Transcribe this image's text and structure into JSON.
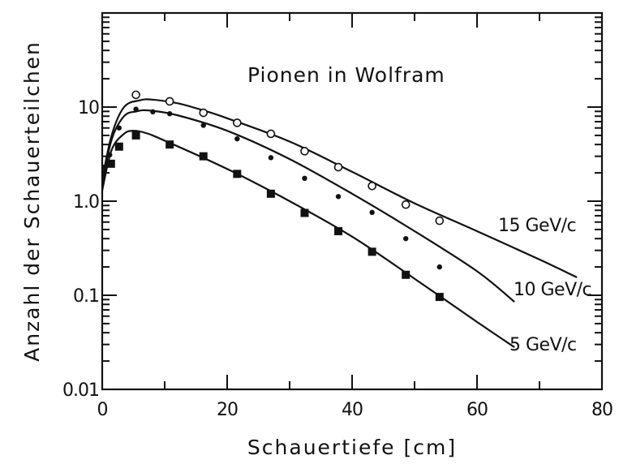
{
  "chart_data": {
    "type": "scatter",
    "title": "Pionen in Wolfram",
    "xlabel": "Schauertiefe [cm]",
    "ylabel": "Anzahl der Schauerteilchen",
    "xlim": [
      0,
      80
    ],
    "ylim": [
      0.01,
      100
    ],
    "yscale": "log",
    "x_ticks": [
      0,
      20,
      40,
      60,
      80
    ],
    "y_ticks": [
      {
        "value": 0.01,
        "label": "0.01"
      },
      {
        "value": 0.1,
        "label": "0.1"
      },
      {
        "value": 1,
        "label": "1.0"
      },
      {
        "value": 10,
        "label": "10"
      }
    ],
    "grid": false,
    "series": [
      {
        "name": "15 GeV/c",
        "marker": "open-circle",
        "points": [
          {
            "x": 5.4,
            "y": 13.5
          },
          {
            "x": 10.8,
            "y": 11.5
          },
          {
            "x": 16.2,
            "y": 8.7
          },
          {
            "x": 21.6,
            "y": 6.8
          },
          {
            "x": 27.0,
            "y": 5.2
          },
          {
            "x": 32.4,
            "y": 3.4
          },
          {
            "x": 37.8,
            "y": 2.3
          },
          {
            "x": 43.2,
            "y": 1.45
          },
          {
            "x": 48.6,
            "y": 0.92
          },
          {
            "x": 54.0,
            "y": 0.62
          }
        ],
        "curve": [
          {
            "x": 0,
            "y": 1.7
          },
          {
            "x": 1.5,
            "y": 5.0
          },
          {
            "x": 3.5,
            "y": 10.0
          },
          {
            "x": 6.0,
            "y": 11.8
          },
          {
            "x": 8.0,
            "y": 12.0
          },
          {
            "x": 12.0,
            "y": 11.0
          },
          {
            "x": 16.0,
            "y": 9.3
          },
          {
            "x": 20.0,
            "y": 7.6
          },
          {
            "x": 30.0,
            "y": 4.3
          },
          {
            "x": 40.0,
            "y": 2.05
          },
          {
            "x": 50.0,
            "y": 0.95
          },
          {
            "x": 60.0,
            "y": 0.48
          },
          {
            "x": 70.0,
            "y": 0.24
          },
          {
            "x": 76.0,
            "y": 0.155
          }
        ]
      },
      {
        "name": "10 GeV/c",
        "marker": "filled-circle",
        "points": [
          {
            "x": 0.3,
            "y": 2.3
          },
          {
            "x": 1.2,
            "y": 3.1
          },
          {
            "x": 2.7,
            "y": 6.0
          },
          {
            "x": 5.4,
            "y": 9.5
          },
          {
            "x": 8.1,
            "y": 8.9
          },
          {
            "x": 10.8,
            "y": 8.5
          },
          {
            "x": 16.2,
            "y": 6.4
          },
          {
            "x": 21.6,
            "y": 4.6
          },
          {
            "x": 27.0,
            "y": 2.9
          },
          {
            "x": 32.4,
            "y": 1.75
          },
          {
            "x": 37.8,
            "y": 1.12
          },
          {
            "x": 43.2,
            "y": 0.76
          },
          {
            "x": 48.6,
            "y": 0.4
          },
          {
            "x": 54.0,
            "y": 0.2
          }
        ],
        "curve": [
          {
            "x": 0,
            "y": 1.5
          },
          {
            "x": 1.5,
            "y": 4.5
          },
          {
            "x": 3.5,
            "y": 8.0
          },
          {
            "x": 5.5,
            "y": 9.0
          },
          {
            "x": 7.5,
            "y": 9.2
          },
          {
            "x": 12.0,
            "y": 8.2
          },
          {
            "x": 20.0,
            "y": 5.6
          },
          {
            "x": 30.0,
            "y": 2.8
          },
          {
            "x": 40.0,
            "y": 1.2
          },
          {
            "x": 50.0,
            "y": 0.48
          },
          {
            "x": 60.0,
            "y": 0.18
          },
          {
            "x": 66.0,
            "y": 0.085
          }
        ]
      },
      {
        "name": "5 GeV/c",
        "marker": "filled-square",
        "points": [
          {
            "x": 1.4,
            "y": 2.5
          },
          {
            "x": 2.7,
            "y": 3.8
          },
          {
            "x": 5.4,
            "y": 5.0
          },
          {
            "x": 10.8,
            "y": 4.0
          },
          {
            "x": 16.2,
            "y": 3.0
          },
          {
            "x": 21.6,
            "y": 1.95
          },
          {
            "x": 27.0,
            "y": 1.2
          },
          {
            "x": 32.4,
            "y": 0.75
          },
          {
            "x": 37.8,
            "y": 0.48
          },
          {
            "x": 43.2,
            "y": 0.29
          },
          {
            "x": 48.6,
            "y": 0.165
          },
          {
            "x": 54.0,
            "y": 0.096
          }
        ],
        "curve": [
          {
            "x": 0,
            "y": 1.3
          },
          {
            "x": 1.5,
            "y": 3.5
          },
          {
            "x": 3.5,
            "y": 5.2
          },
          {
            "x": 5.0,
            "y": 5.6
          },
          {
            "x": 7.0,
            "y": 5.3
          },
          {
            "x": 10.0,
            "y": 4.4
          },
          {
            "x": 20.0,
            "y": 2.2
          },
          {
            "x": 30.0,
            "y": 1.0
          },
          {
            "x": 40.0,
            "y": 0.42
          },
          {
            "x": 50.0,
            "y": 0.15
          },
          {
            "x": 60.0,
            "y": 0.052
          },
          {
            "x": 66.0,
            "y": 0.028
          }
        ]
      }
    ]
  }
}
